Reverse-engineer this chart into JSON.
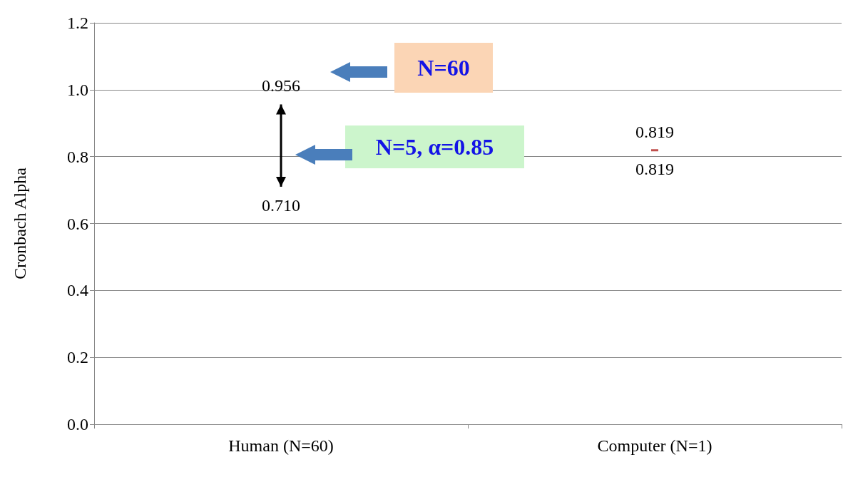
{
  "chart_data": {
    "type": "bar",
    "ylabel": "Cronbach Alpha",
    "categories": [
      "Human (N=60)",
      "Computer (N=1)"
    ],
    "base": [
      0.71,
      0.819
    ],
    "values": [
      0.246,
      0
    ],
    "colors": [
      "#000000",
      "#c0504d"
    ],
    "ylim": [
      0,
      1.2
    ],
    "yticks": [
      {
        "value": 0,
        "label": "0.0"
      },
      {
        "value": 0.2,
        "label": "0.2"
      },
      {
        "value": 0.4,
        "label": "0.4"
      },
      {
        "value": 0.6,
        "label": "0.6"
      },
      {
        "value": 0.8,
        "label": "0.8"
      },
      {
        "value": 1,
        "label": "1.0"
      },
      {
        "value": 1.2,
        "label": "1.2"
      }
    ],
    "grid": "y",
    "annotations": [
      {
        "text": "0.956",
        "x": "Human (N=60)",
        "y": 0.956
      },
      {
        "text": "0.710",
        "x": "Human (N=60)",
        "y": 0.71
      },
      {
        "text": "0.819",
        "x": "Computer (N=1)",
        "y": 0.819
      },
      {
        "text": "0.819",
        "x": "Computer (N=1)",
        "y": 0.819
      },
      "N=60",
      "N=5, α=0.85"
    ]
  }
}
